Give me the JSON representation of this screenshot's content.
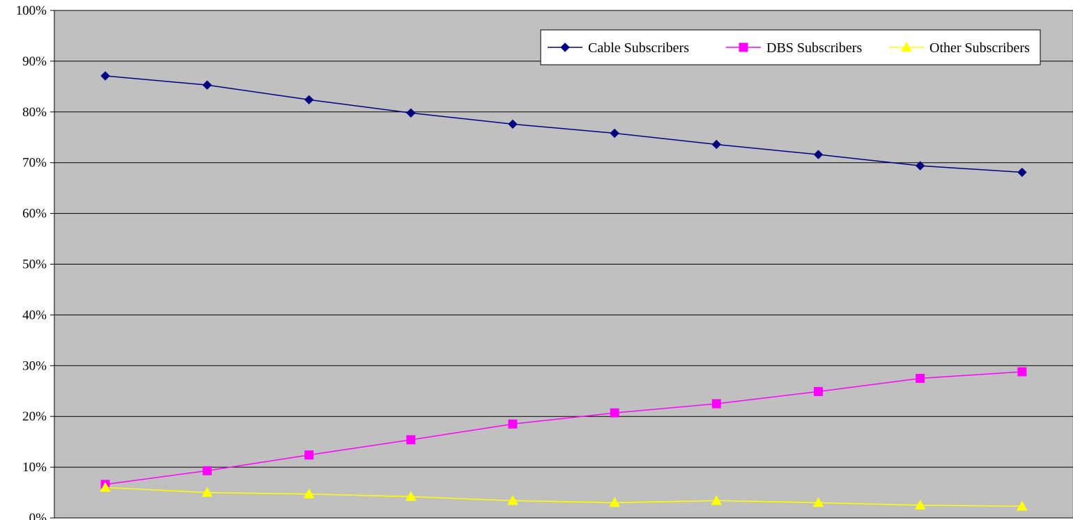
{
  "chart_data": {
    "type": "line",
    "title": "",
    "xlabel": "",
    "ylabel": "",
    "categories": [
      "",
      "",
      "",
      "",
      "",
      "",
      "",
      "",
      "",
      ""
    ],
    "ylim": [
      0,
      100
    ],
    "y_tick_labels": [
      "0%",
      "10%",
      "20%",
      "30%",
      "40%",
      "50%",
      "60%",
      "70%",
      "80%",
      "90%",
      "100%"
    ],
    "grid": true,
    "plot_background": "#C0C0C0",
    "legend": {
      "position": "top-right",
      "entries": [
        "Cable Subscribers",
        "DBS Subscribers",
        "Other Subscribers"
      ]
    },
    "series": [
      {
        "name": "Cable Subscribers",
        "color": "#000080",
        "marker": "diamond",
        "values": [
          87.1,
          85.3,
          82.4,
          79.8,
          77.6,
          75.8,
          73.6,
          71.6,
          69.4,
          68.1
        ]
      },
      {
        "name": "DBS Subscribers",
        "color": "#FF00FF",
        "marker": "square",
        "values": [
          6.6,
          9.3,
          12.4,
          15.4,
          18.5,
          20.7,
          22.5,
          24.9,
          27.5,
          28.8
        ]
      },
      {
        "name": "Other Subscribers",
        "color": "#FFFF00",
        "marker": "triangle",
        "values": [
          6.0,
          5.0,
          4.7,
          4.2,
          3.4,
          3.0,
          3.4,
          3.0,
          2.5,
          2.3
        ]
      }
    ]
  }
}
